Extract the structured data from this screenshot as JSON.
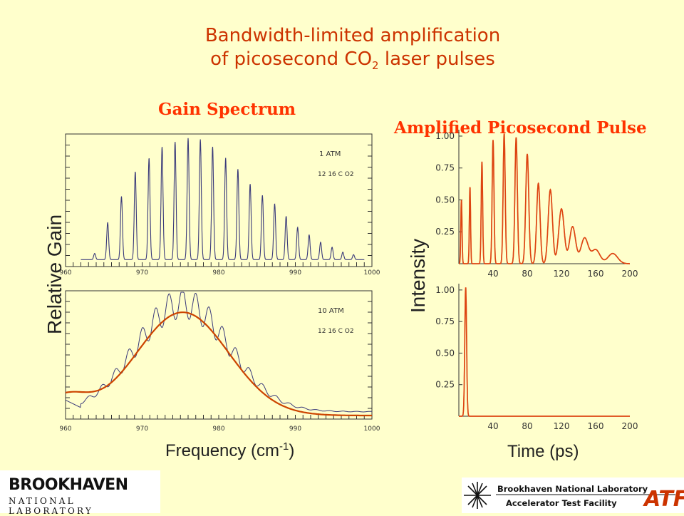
{
  "slide": {
    "title_line1": "Bandwidth-limited amplification",
    "title_line2_prefix": "of picosecond CO",
    "title_line2_sub": "2",
    "title_line2_suffix": " laser pulses",
    "colors": {
      "background": "#ffffcc",
      "title": "#cc3300",
      "panel_title": "#ff3300",
      "spectrum_line": "#3a3a7a",
      "fit_line": "#cc4400",
      "pulse_line": "#dd4411"
    }
  },
  "logos": {
    "bnl_name": "BROOKHAVEN",
    "bnl_sub": "NATIONAL LABORATORY",
    "atf_line1": "Brookhaven National Laboratory",
    "atf_line2": "Accelerator Test Facility",
    "atf_mark": "ATF"
  },
  "chart_data": [
    {
      "type": "line",
      "panel_title": "Gain Spectrum",
      "annotation": "1 ATM",
      "annotation_gas": "12 16 C O2",
      "xlim": [
        960,
        1000
      ],
      "x_ticks": [
        "960",
        "970",
        "980",
        "990",
        "1000"
      ],
      "ylabel": "Relative Gain",
      "series": [
        {
          "kind": "resolved-lines",
          "line_positions": [
            963.8,
            965.5,
            967.3,
            969.1,
            970.9,
            972.6,
            974.3,
            976.0,
            977.6,
            979.2,
            980.9,
            982.5,
            984.1,
            985.7,
            987.3,
            988.8,
            990.3,
            991.8,
            993.3,
            994.8,
            996.2,
            997.6
          ],
          "peak_heights": [
            0.05,
            0.3,
            0.51,
            0.71,
            0.82,
            0.91,
            0.95,
            0.98,
            0.97,
            0.91,
            0.82,
            0.73,
            0.61,
            0.52,
            0.45,
            0.35,
            0.26,
            0.2,
            0.14,
            0.1,
            0.06,
            0.04
          ]
        }
      ]
    },
    {
      "type": "line",
      "panel_title": "",
      "annotation": "10 ATM",
      "annotation_gas": "12 16 C O2",
      "xlim": [
        960,
        1000
      ],
      "x_ticks": [
        "960",
        "970",
        "980",
        "990",
        "1000"
      ],
      "xlabel": "Frequency (cm",
      "xlabel_sup": "-1",
      "xlabel_end": ")",
      "series": [
        {
          "name": "",
          "kind": "fit",
          "center": 975.3,
          "width": 8.5,
          "x": [
            960,
            965,
            970,
            972,
            975,
            977,
            980,
            985,
            990,
            995,
            1000
          ],
          "y": [
            0.18,
            0.4,
            0.76,
            0.88,
            1.0,
            0.97,
            0.8,
            0.44,
            0.18,
            0.06,
            0.02
          ]
        },
        {
          "name": "",
          "kind": "measured-modulated",
          "modulation_period": 1.75,
          "modulation_depth": 0.12
        }
      ]
    },
    {
      "type": "line",
      "panel_title": "Amplified Picosecond Pulse",
      "xlim": [
        0,
        200
      ],
      "ylim": [
        0,
        1.05
      ],
      "x_ticks": [
        "40",
        "80",
        "120",
        "160",
        "200"
      ],
      "y_ticks": [
        "0.25",
        "0.50",
        "0.75",
        "1.00"
      ],
      "ylabel": "Intensity",
      "series": [
        {
          "kind": "pulse-train",
          "pulse_times": [
            3,
            13,
            27,
            40,
            53,
            67,
            80,
            93,
            107,
            120,
            133,
            147,
            160,
            180
          ],
          "pulse_heights": [
            0.5,
            0.6,
            0.8,
            0.97,
            1.02,
            0.99,
            0.86,
            0.63,
            0.58,
            0.43,
            0.29,
            0.2,
            0.11,
            0.08
          ],
          "pulse_width_ps": [
            1,
            1,
            1.2,
            1.5,
            1.7,
            2,
            2.5,
            2.8,
            3.5,
            4.5,
            5,
            6,
            7,
            8
          ]
        }
      ]
    },
    {
      "type": "line",
      "xlim": [
        0,
        200
      ],
      "ylim": [
        0,
        1.05
      ],
      "x_ticks": [
        "40",
        "80",
        "120",
        "160",
        "200"
      ],
      "y_ticks": [
        "0.25",
        "0.50",
        "0.75",
        "1.00"
      ],
      "xlabel": "Time (ps)",
      "series": [
        {
          "kind": "single-pulse",
          "pulse_times": [
            8
          ],
          "pulse_heights": [
            1.02
          ],
          "pulse_width_ps": [
            1.5
          ]
        }
      ]
    }
  ]
}
